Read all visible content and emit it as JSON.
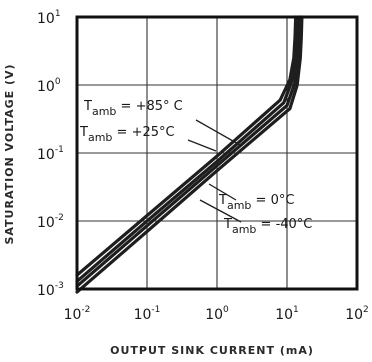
{
  "chart_data": {
    "type": "line",
    "x_scale": "log",
    "y_scale": "log",
    "xlim": [
      0.01,
      100
    ],
    "ylim": [
      0.001,
      10
    ],
    "grid": true,
    "xlabel": "OUTPUT SINK CURRENT (mA)",
    "ylabel": "SATURATION VOLTAGE (V)",
    "x_ticks": [
      {
        "base": "10",
        "exp": "-2",
        "value": 0.01
      },
      {
        "base": "10",
        "exp": "-1",
        "value": 0.1
      },
      {
        "base": "10",
        "exp": "0",
        "value": 1
      },
      {
        "base": "10",
        "exp": "1",
        "value": 10
      },
      {
        "base": "10",
        "exp": "2",
        "value": 100
      }
    ],
    "y_ticks": [
      {
        "base": "10",
        "exp": "1",
        "value": 10
      },
      {
        "base": "10",
        "exp": "0",
        "value": 1
      },
      {
        "base": "10",
        "exp": "-1",
        "value": 0.1
      },
      {
        "base": "10",
        "exp": "-2",
        "value": 0.01
      },
      {
        "base": "10",
        "exp": "-3",
        "value": 0.001
      }
    ],
    "series": [
      {
        "name": "T_amb = +85°C",
        "x": [
          0.01,
          0.1,
          1,
          8,
          11,
          12.5,
          13,
          13.3
        ],
        "y": [
          0.0016,
          0.012,
          0.09,
          0.6,
          1.2,
          2.5,
          5,
          10
        ]
      },
      {
        "name": "T_amb = +25°C",
        "x": [
          0.01,
          0.1,
          1,
          9,
          12,
          13.5,
          14,
          14.3
        ],
        "y": [
          0.0013,
          0.01,
          0.075,
          0.55,
          1.2,
          2.5,
          5,
          10
        ]
      },
      {
        "name": "T_amb = 0°C",
        "x": [
          0.01,
          0.1,
          1,
          10,
          13,
          14.5,
          15,
          15.3
        ],
        "y": [
          0.0011,
          0.0085,
          0.065,
          0.5,
          1.1,
          2.5,
          5,
          10
        ]
      },
      {
        "name": "T_amb = -40°C",
        "x": [
          0.01,
          0.1,
          1,
          11,
          14,
          15.5,
          16,
          16.3
        ],
        "y": [
          0.0009,
          0.007,
          0.055,
          0.45,
          1.0,
          2.5,
          5,
          10
        ]
      }
    ],
    "annotations": [
      {
        "main": "T",
        "sub": "amb",
        "rest": " = +85° C"
      },
      {
        "main": "T",
        "sub": "amb",
        "rest": " = +25°C"
      },
      {
        "main": "T",
        "sub": "amb",
        "rest": " = 0°C"
      },
      {
        "main": "T",
        "sub": "amb",
        "rest": " = -40°C"
      }
    ]
  }
}
